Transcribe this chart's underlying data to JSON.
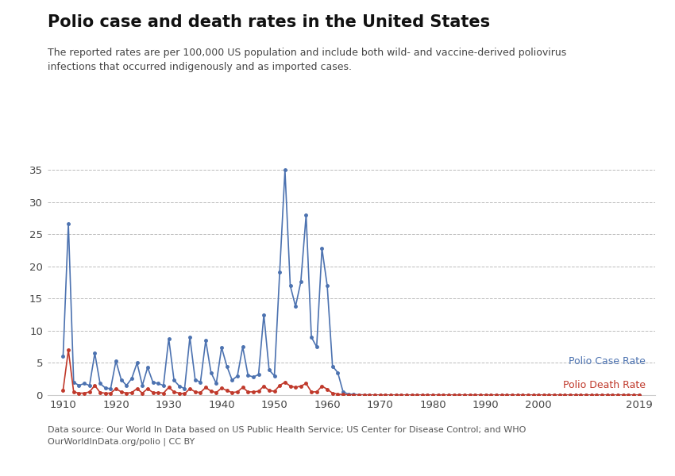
{
  "title": "Polio case and death rates in the United States",
  "subtitle": "The reported rates are per 100,000 US population and include both wild- and vaccine-derived poliovirus\ninfections that occurred indigenously and as imported cases.",
  "source": "Data source: Our World In Data based on US Public Health Service; US Center for Disease Control; and WHO\nOurWorldInData.org/polio | CC BY",
  "case_rate_color": "#4C72B0",
  "death_rate_color": "#C0392B",
  "background_color": "#FFFFFF",
  "grid_color": "#BBBBBB",
  "ylim": [
    0,
    37
  ],
  "yticks": [
    0,
    5,
    10,
    15,
    20,
    25,
    30,
    35
  ],
  "xticks": [
    1910,
    1920,
    1930,
    1940,
    1950,
    1960,
    1970,
    1980,
    1990,
    2000,
    2019
  ],
  "xlim": [
    1907,
    2022
  ],
  "years_case": [
    1910,
    1911,
    1912,
    1913,
    1914,
    1915,
    1916,
    1917,
    1918,
    1919,
    1920,
    1921,
    1922,
    1923,
    1924,
    1925,
    1926,
    1927,
    1928,
    1929,
    1930,
    1931,
    1932,
    1933,
    1934,
    1935,
    1936,
    1937,
    1938,
    1939,
    1940,
    1941,
    1942,
    1943,
    1944,
    1945,
    1946,
    1947,
    1948,
    1949,
    1950,
    1951,
    1952,
    1953,
    1954,
    1955,
    1956,
    1957,
    1958,
    1959,
    1960,
    1961,
    1962,
    1963,
    1964,
    1965,
    1966,
    1967,
    1968,
    1969,
    1970,
    1971,
    1972,
    1973,
    1974,
    1975,
    1976,
    1977,
    1978,
    1979,
    1980,
    1981,
    1982,
    1983,
    1984,
    1985,
    1986,
    1987,
    1988,
    1989,
    1990,
    1991,
    1992,
    1993,
    1994,
    1995,
    1996,
    1997,
    1998,
    1999,
    2000,
    2001,
    2002,
    2003,
    2004,
    2005,
    2006,
    2007,
    2008,
    2009,
    2010,
    2011,
    2012,
    2013,
    2014,
    2015,
    2016,
    2017,
    2018,
    2019
  ],
  "case_rates": [
    6.1,
    26.7,
    2.0,
    1.5,
    1.8,
    1.5,
    6.5,
    1.8,
    1.1,
    1.0,
    5.3,
    2.4,
    1.5,
    2.6,
    5.0,
    1.5,
    4.3,
    2.0,
    1.8,
    1.5,
    8.8,
    2.3,
    1.4,
    1.0,
    9.0,
    2.4,
    2.0,
    8.5,
    3.5,
    1.8,
    7.4,
    4.5,
    2.3,
    3.0,
    7.5,
    3.1,
    2.8,
    3.2,
    12.5,
    3.9,
    3.0,
    19.1,
    35.0,
    17.0,
    13.8,
    17.6,
    28.0,
    9.0,
    7.5,
    22.8,
    17.0,
    4.5,
    3.5,
    0.5,
    0.15,
    0.1,
    0.05,
    0.04,
    0.03,
    0.02,
    0.02,
    0.02,
    0.02,
    0.02,
    0.02,
    0.01,
    0.01,
    0.01,
    0.01,
    0.01,
    0.01,
    0.01,
    0.01,
    0.01,
    0.01,
    0.01,
    0.01,
    0.01,
    0.01,
    0.01,
    0.01,
    0.01,
    0.01,
    0.01,
    0.01,
    0.01,
    0.01,
    0.01,
    0.01,
    0.01,
    0.01,
    0.01,
    0.01,
    0.01,
    0.01,
    0.01,
    0.01,
    0.01,
    0.01,
    0.01,
    0.01,
    0.01,
    0.01,
    0.01,
    0.01,
    0.01,
    0.01,
    0.01,
    0.01,
    0.01
  ],
  "years_death": [
    1910,
    1911,
    1912,
    1913,
    1914,
    1915,
    1916,
    1917,
    1918,
    1919,
    1920,
    1921,
    1922,
    1923,
    1924,
    1925,
    1926,
    1927,
    1928,
    1929,
    1930,
    1931,
    1932,
    1933,
    1934,
    1935,
    1936,
    1937,
    1938,
    1939,
    1940,
    1941,
    1942,
    1943,
    1944,
    1945,
    1946,
    1947,
    1948,
    1949,
    1950,
    1951,
    1952,
    1953,
    1954,
    1955,
    1956,
    1957,
    1958,
    1959,
    1960,
    1961,
    1962,
    1963,
    1964,
    1965,
    1966,
    1967,
    1968,
    1969,
    1970,
    1971,
    1972,
    1973,
    1974,
    1975,
    1976,
    1977,
    1978,
    1979,
    1980,
    1981,
    1982,
    1983,
    1984,
    1985,
    1986,
    1987,
    1988,
    1989,
    1990,
    1991,
    1992,
    1993,
    1994,
    1995,
    1996,
    1997,
    1998,
    1999,
    2000,
    2001,
    2002,
    2003,
    2004,
    2005,
    2006,
    2007,
    2008,
    2009,
    2010,
    2011,
    2012,
    2013,
    2014,
    2015,
    2016,
    2017,
    2018,
    2019
  ],
  "death_rates": [
    0.8,
    7.0,
    0.5,
    0.3,
    0.3,
    0.5,
    1.5,
    0.4,
    0.3,
    0.3,
    1.0,
    0.5,
    0.3,
    0.4,
    1.0,
    0.3,
    1.0,
    0.4,
    0.4,
    0.3,
    1.2,
    0.5,
    0.3,
    0.2,
    1.0,
    0.5,
    0.4,
    1.2,
    0.6,
    0.4,
    1.1,
    0.7,
    0.4,
    0.5,
    1.2,
    0.5,
    0.5,
    0.6,
    1.4,
    0.7,
    0.6,
    1.5,
    2.0,
    1.4,
    1.2,
    1.4,
    1.8,
    0.5,
    0.5,
    1.4,
    0.9,
    0.3,
    0.15,
    0.08,
    0.04,
    0.03,
    0.02,
    0.01,
    0.01,
    0.01,
    0.01,
    0.01,
    0.01,
    0.01,
    0.01,
    0.01,
    0.01,
    0.01,
    0.01,
    0.01,
    0.01,
    0.01,
    0.01,
    0.01,
    0.01,
    0.01,
    0.01,
    0.01,
    0.01,
    0.01,
    0.01,
    0.01,
    0.01,
    0.01,
    0.01,
    0.01,
    0.01,
    0.01,
    0.01,
    0.01,
    0.01,
    0.01,
    0.01,
    0.01,
    0.01,
    0.01,
    0.01,
    0.01,
    0.01,
    0.01,
    0.01,
    0.01,
    0.01,
    0.01,
    0.01,
    0.01,
    0.01,
    0.01,
    0.01,
    0.01
  ],
  "legend_case": "Polio Case Rate",
  "legend_death": "Polio Death Rate",
  "owid_box_color": "#1a3a5c",
  "owid_bar_color": "#C0392B",
  "marker_size": 2.5,
  "line_width": 1.2
}
